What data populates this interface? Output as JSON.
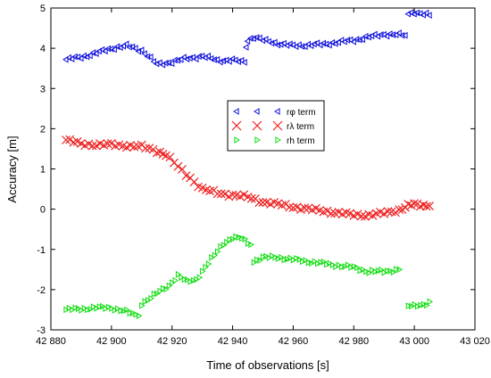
{
  "chart_data": {
    "type": "scatter",
    "title": "",
    "xlabel": "Time of observations [s]",
    "ylabel": "Accuracy [m]",
    "xlim": [
      42880,
      43020
    ],
    "ylim": [
      -3,
      5
    ],
    "x_ticks": [
      42880,
      42900,
      42920,
      42940,
      42960,
      42980,
      43000,
      43020
    ],
    "x_tick_labels": [
      "42 880",
      "42 900",
      "42 920",
      "42 940",
      "42 960",
      "42 980",
      "43 000",
      "43 020"
    ],
    "y_ticks": [
      -3,
      -2,
      -1,
      0,
      1,
      2,
      3,
      4,
      5
    ],
    "y_tick_labels": [
      "-3",
      "-2",
      "-1",
      "0",
      "1",
      "2",
      "3",
      "4",
      "5"
    ],
    "grid": false,
    "legend_position": "center",
    "series": [
      {
        "name": "rφ term",
        "marker": "triangle-left",
        "color": "#1010dd",
        "segments": [
          {
            "x": [
              42885,
              42890,
              42895,
              42900,
              42905,
              42910,
              42915,
              42920,
              42925,
              42930,
              42935,
              42940,
              42944
            ],
            "y": [
              3.72,
              3.78,
              3.88,
              4.0,
              4.06,
              3.95,
              3.6,
              3.66,
              3.75,
              3.8,
              3.7,
              3.7,
              3.65
            ]
          },
          {
            "x": [
              42944.5,
              42945,
              42947,
              42950,
              42955,
              42960,
              42965,
              42970,
              42975,
              42980,
              42985,
              42990,
              42995,
              42997
            ],
            "y": [
              4.05,
              4.2,
              4.28,
              4.2,
              4.12,
              4.06,
              4.08,
              4.1,
              4.15,
              4.2,
              4.28,
              4.35,
              4.33,
              4.32
            ]
          },
          {
            "x": [
              42998,
              43000,
              43003,
              43005
            ],
            "y": [
              4.85,
              4.9,
              4.85,
              4.82
            ]
          }
        ]
      },
      {
        "name": "rλ term",
        "marker": "x",
        "color": "#ee2020",
        "segments": [
          {
            "x": [
              42885,
              42890,
              42895,
              42900,
              42905,
              42910,
              42915,
              42918,
              42922,
              42926,
              42930,
              42935,
              42940,
              42945,
              42950,
              42955,
              42960,
              42965,
              42970,
              42975,
              42980,
              42985,
              42990,
              42995,
              42998,
              43000,
              43003,
              43005
            ],
            "y": [
              1.72,
              1.62,
              1.6,
              1.6,
              1.58,
              1.55,
              1.45,
              1.35,
              1.05,
              0.78,
              0.5,
              0.4,
              0.35,
              0.3,
              0.18,
              0.12,
              0.06,
              0.0,
              -0.04,
              -0.1,
              -0.14,
              -0.15,
              -0.1,
              -0.02,
              0.08,
              0.12,
              0.1,
              0.08
            ]
          }
        ]
      },
      {
        "name": "rh term",
        "marker": "triangle-right",
        "color": "#10dd10",
        "segments": [
          {
            "x": [
              42885,
              42890,
              42895,
              42900,
              42905,
              42909
            ],
            "y": [
              -2.5,
              -2.48,
              -2.45,
              -2.45,
              -2.55,
              -2.65
            ]
          },
          {
            "x": [
              42910,
              42913,
              42916,
              42919,
              42922,
              42925,
              42928,
              42931,
              42934,
              42937,
              42940,
              42943,
              42946
            ],
            "y": [
              -2.35,
              -2.2,
              -2.05,
              -1.9,
              -1.65,
              -1.8,
              -1.75,
              -1.45,
              -1.15,
              -0.85,
              -0.72,
              -0.72,
              -0.88
            ]
          },
          {
            "x": [
              42947,
              42950,
              42955,
              42960,
              42965,
              42970,
              42975,
              42980,
              42985,
              42990,
              42995
            ],
            "y": [
              -1.3,
              -1.2,
              -1.2,
              -1.25,
              -1.3,
              -1.35,
              -1.4,
              -1.45,
              -1.55,
              -1.55,
              -1.5
            ]
          },
          {
            "x": [
              42998,
              43000,
              43003,
              43005
            ],
            "y": [
              -2.4,
              -2.42,
              -2.38,
              -2.3
            ]
          }
        ]
      }
    ]
  }
}
